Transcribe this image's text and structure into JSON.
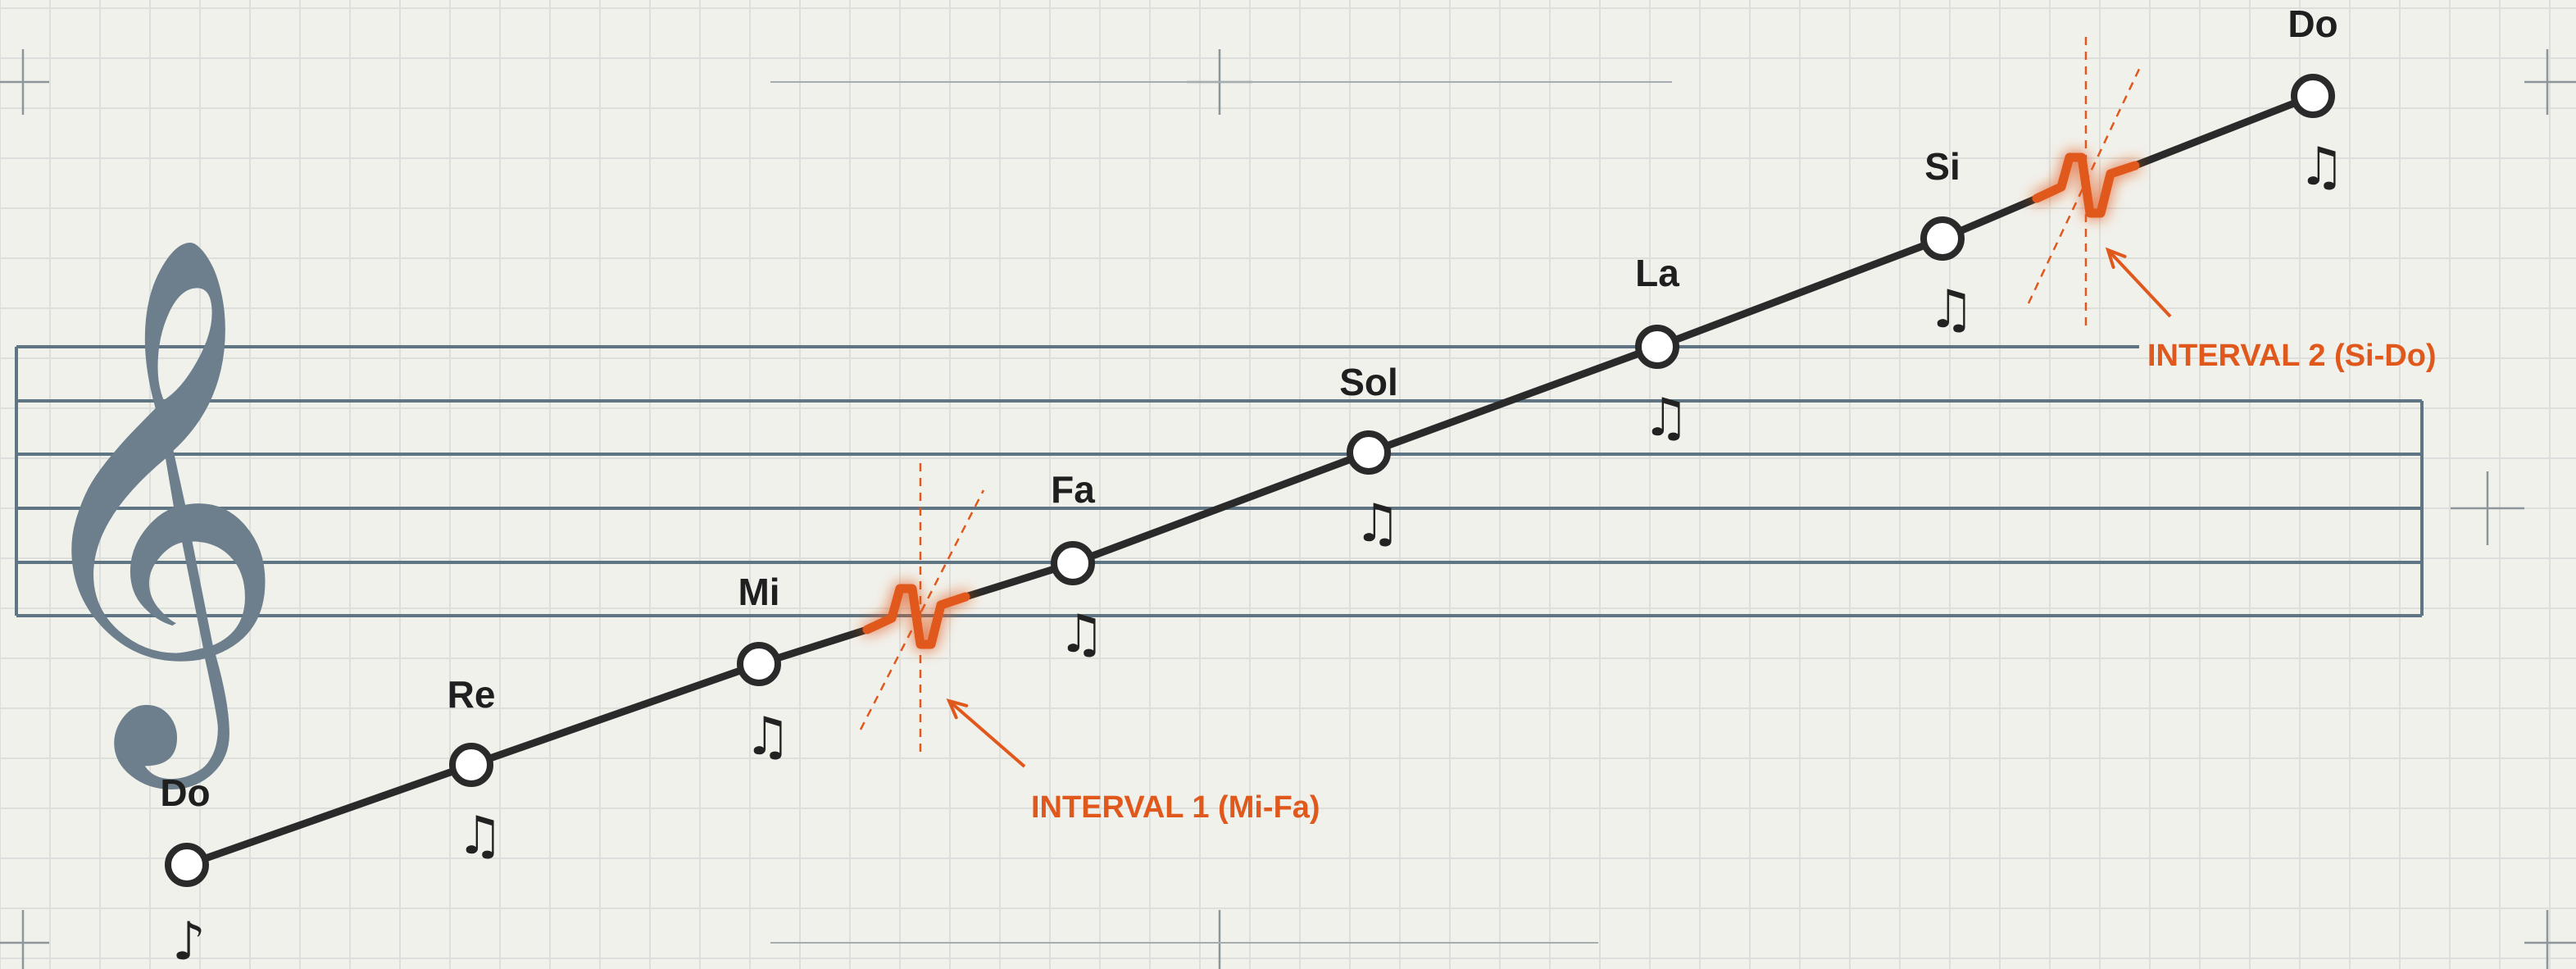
{
  "clef_icon": "treble-clef-icon",
  "clef_glyph": "𝄞",
  "colors": {
    "background": "#f1f1ec",
    "grid": "#dcdfdc",
    "staff": "#5f7584",
    "path": "#2a2a2a",
    "accent": "#e0581c"
  },
  "notes": [
    {
      "label": "Do",
      "glyph": "♪"
    },
    {
      "label": "Re",
      "glyph": "♫"
    },
    {
      "label": "Mi",
      "glyph": "♫"
    },
    {
      "label": "Fa",
      "glyph": "♫"
    },
    {
      "label": "Sol",
      "glyph": "♫"
    },
    {
      "label": "La",
      "glyph": "♫"
    },
    {
      "label": "Si",
      "glyph": "♫"
    },
    {
      "label": "Do",
      "glyph": "♫"
    }
  ],
  "intervals": [
    {
      "label": "INTERVAL 1 (Mi-Fa)",
      "between": [
        "Mi",
        "Fa"
      ]
    },
    {
      "label": "INTERVAL 2 (Si-Do)",
      "between": [
        "Si",
        "Do"
      ]
    }
  ]
}
